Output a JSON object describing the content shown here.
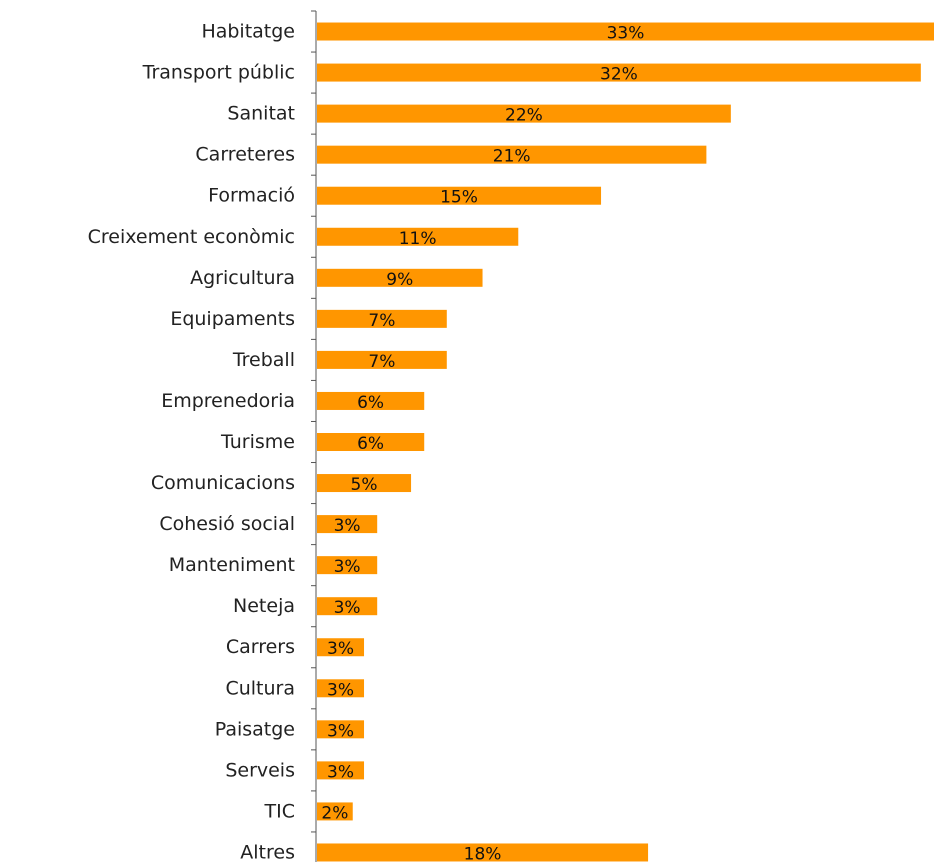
{
  "chart_data": {
    "type": "barh",
    "color": "#ff9600",
    "categories": [
      "Habitatge",
      "Transport públic",
      "Sanitat",
      "Carreteres",
      "Formació",
      "Creixement econòmic",
      "Agricultura",
      "Equipaments",
      "Treball",
      "Emprenedoria",
      "Turisme",
      "Comunicacions",
      "Cohesió social",
      "Manteniment",
      "Neteja",
      "Carrers",
      "Cultura",
      "Paisatge",
      "Serveis",
      "TIC",
      "Altres"
    ],
    "values": [
      32.8,
      32.1,
      22.0,
      20.7,
      15.1,
      10.7,
      8.8,
      6.9,
      6.9,
      5.7,
      5.7,
      5.0,
      3.2,
      3.2,
      3.2,
      2.5,
      2.5,
      2.5,
      2.5,
      1.9,
      17.6
    ],
    "value_labels": [
      "33%",
      "32%",
      "22%",
      "21%",
      "15%",
      "11%",
      "9%",
      "7%",
      "7%",
      "6%",
      "6%",
      "5%",
      "3%",
      "3%",
      "3%",
      "3%",
      "3%",
      "3%",
      "3%",
      "2%",
      "18%"
    ]
  }
}
